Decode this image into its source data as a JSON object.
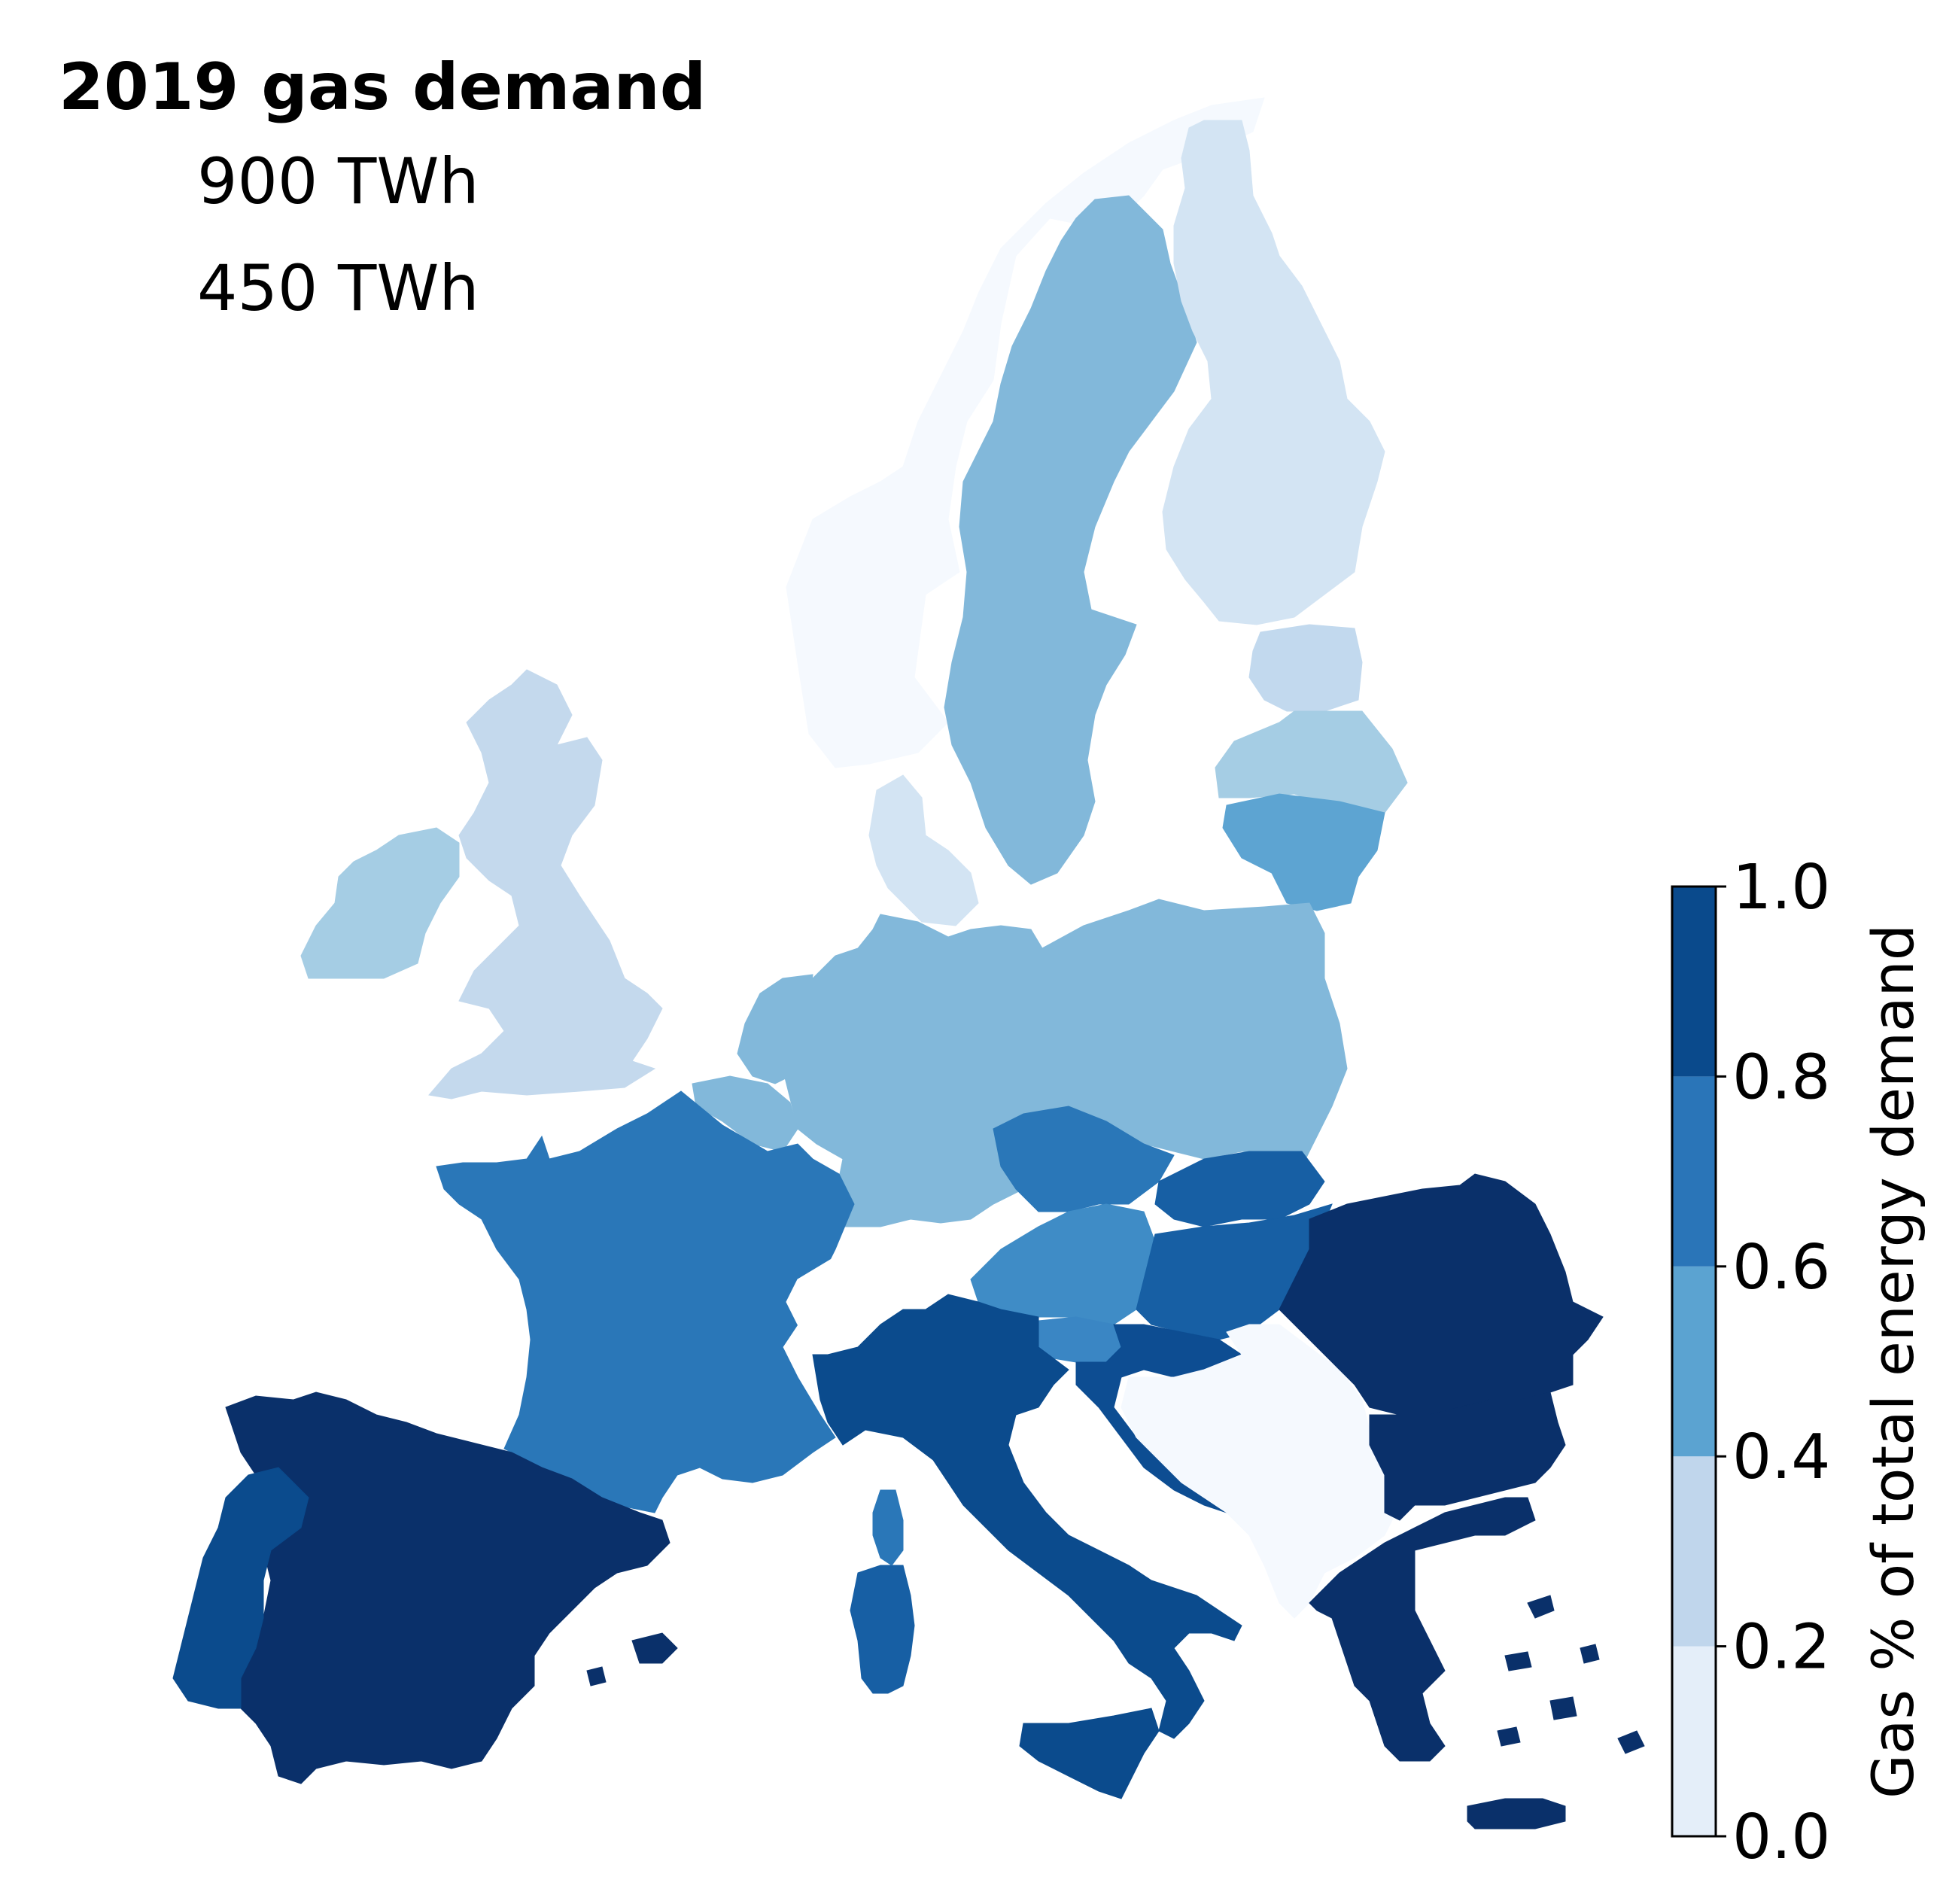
{
  "legend": {
    "title": "2019 gas demand",
    "size_entries": [
      "900 TWh",
      "450 TWh"
    ]
  },
  "colorbar": {
    "label": "Gas % of total energy demand",
    "ticks": [
      "0.0",
      "0.2",
      "0.4",
      "0.6",
      "0.8",
      "1.0"
    ],
    "range": [
      0.0,
      1.0
    ],
    "bins": [
      {
        "from": 0.0,
        "to": 0.2,
        "color": "#e4eef9"
      },
      {
        "from": 0.2,
        "to": 0.4,
        "color": "#c0d6ec"
      },
      {
        "from": 0.4,
        "to": 0.6,
        "color": "#5ba3d1"
      },
      {
        "from": 0.6,
        "to": 0.8,
        "color": "#2a75b8"
      },
      {
        "from": 0.8,
        "to": 1.0,
        "color": "#0a4a8c"
      }
    ]
  },
  "map": {
    "colormap": "Blues",
    "regions": [
      {
        "name": "norway",
        "value": 0.0,
        "color": "#f5f9fe"
      },
      {
        "name": "sweden",
        "value": 0.48,
        "color": "#82b8da"
      },
      {
        "name": "finland",
        "value": 0.2,
        "color": "#d3e4f3"
      },
      {
        "name": "estonia",
        "value": 0.3,
        "color": "#c2d9ee"
      },
      {
        "name": "latvia",
        "value": 0.4,
        "color": "#a5cde4"
      },
      {
        "name": "lithuania",
        "value": 0.55,
        "color": "#5da4d2"
      },
      {
        "name": "ireland",
        "value": 0.4,
        "color": "#a5cde4"
      },
      {
        "name": "united-kingdom",
        "value": 0.3,
        "color": "#c4d9ed"
      },
      {
        "name": "denmark",
        "value": 0.25,
        "color": "#d3e4f3"
      },
      {
        "name": "germany",
        "value": 0.48,
        "color": "#82b8da"
      },
      {
        "name": "poland",
        "value": 0.48,
        "color": "#82b8da"
      },
      {
        "name": "netherlands",
        "value": 0.48,
        "color": "#82b8da"
      },
      {
        "name": "belgium",
        "value": 0.48,
        "color": "#82b8da"
      },
      {
        "name": "france",
        "value": 0.7,
        "color": "#2a77b8"
      },
      {
        "name": "czechia",
        "value": 0.7,
        "color": "#2a77b8"
      },
      {
        "name": "slovakia",
        "value": 0.75,
        "color": "#175fa4"
      },
      {
        "name": "hungary",
        "value": 0.75,
        "color": "#175fa4"
      },
      {
        "name": "austria",
        "value": 0.6,
        "color": "#3f8cc6"
      },
      {
        "name": "slovenia",
        "value": 0.65,
        "color": "#3a86c4"
      },
      {
        "name": "croatia",
        "value": 0.8,
        "color": "#0d4d92"
      },
      {
        "name": "switzerland",
        "value": 0.0,
        "color": "#ffffff"
      },
      {
        "name": "italy",
        "value": 0.85,
        "color": "#0b4b8d"
      },
      {
        "name": "sardinia",
        "value": 0.75,
        "color": "#175fa4"
      },
      {
        "name": "corsica",
        "value": 0.7,
        "color": "#2a77b8"
      },
      {
        "name": "spain",
        "value": 0.95,
        "color": "#0a306a"
      },
      {
        "name": "portugal",
        "value": 0.85,
        "color": "#0b4b8d"
      },
      {
        "name": "romania",
        "value": 0.95,
        "color": "#0a306a"
      },
      {
        "name": "bulgaria",
        "value": 0.95,
        "color": "#0a306a"
      },
      {
        "name": "greece",
        "value": 0.95,
        "color": "#0a306a"
      },
      {
        "name": "western-balkans",
        "value": 0.0,
        "color": "#f5f9fe"
      }
    ]
  }
}
